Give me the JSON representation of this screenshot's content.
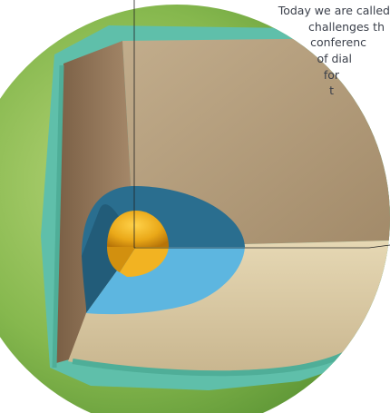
{
  "figure": {
    "subject": "cutaway illustration of a planet showing crust, mantle and core",
    "colors": {
      "crust_green": "#7fb24a",
      "teal_rim": "#5fbfaa",
      "mantle_tan": "#b59e7d",
      "outer_core_blue": "#2a6e8f",
      "outer_core_light": "#5db6e0",
      "inner_core_gold": "#e8a316"
    }
  },
  "text_block": {
    "lines": [
      "Today we are called",
      "challenges th",
      "conferenc",
      "of dial",
      "for",
      "t"
    ]
  }
}
